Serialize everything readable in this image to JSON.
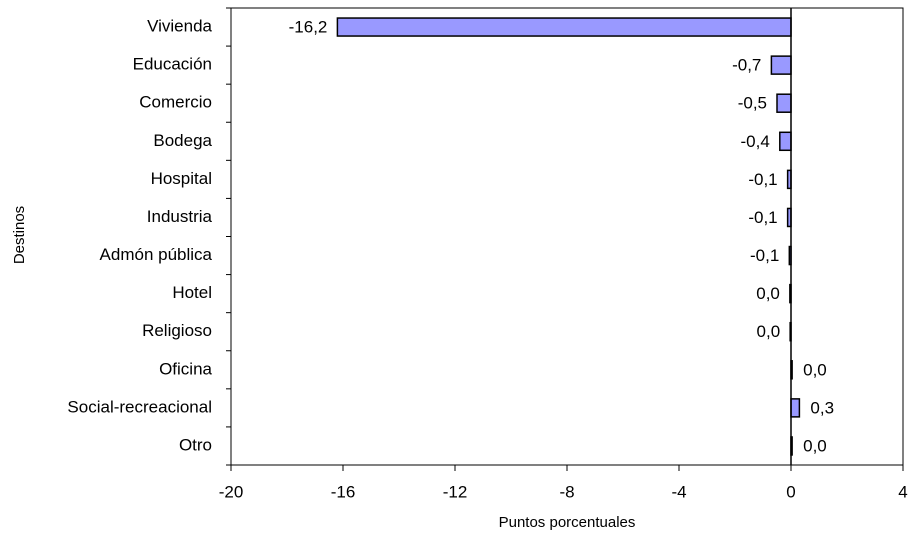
{
  "chart_data": {
    "type": "barh",
    "categories": [
      "Vivienda",
      "Educación",
      "Comercio",
      "Bodega",
      "Hospital",
      "Industria",
      "Admón pública",
      "Hotel",
      "Religioso",
      "Oficina",
      "Social-recreacional",
      "Otro"
    ],
    "values": [
      -16.2,
      -0.7,
      -0.5,
      -0.4,
      -0.12,
      -0.12,
      -0.06,
      -0.04,
      -0.03,
      0.04,
      0.3,
      0.04
    ],
    "value_labels": [
      "-16,2",
      "-0,7",
      "-0,5",
      "-0,4",
      "-0,1",
      "-0,1",
      "-0,1",
      "0,0",
      "0,0",
      "0,0",
      "0,3",
      "0,0"
    ],
    "color": "#9999ff",
    "xlim": [
      -20,
      4
    ],
    "xticks": [
      -20,
      -16,
      -12,
      -8,
      -4,
      0,
      4
    ],
    "xlabel": "Puntos porcentuales",
    "ylabel": "Destinos"
  }
}
